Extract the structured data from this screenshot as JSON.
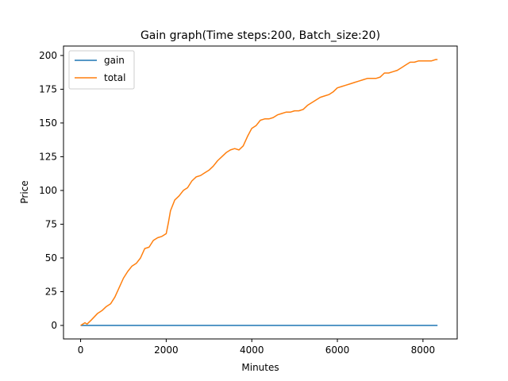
{
  "chart_data": {
    "type": "line",
    "title": "Gain graph(Time steps:200, Batch_size:20)",
    "xlabel": "Minutes",
    "ylabel": "Price",
    "xlim": [
      -400,
      8800
    ],
    "ylim": [
      -10,
      207
    ],
    "xticks": [
      0,
      2000,
      4000,
      6000,
      8000
    ],
    "yticks": [
      0,
      25,
      50,
      75,
      100,
      125,
      150,
      175,
      200
    ],
    "grid": false,
    "legend_position": "top-left",
    "series": [
      {
        "name": "gain",
        "color": "#1f77b4",
        "x": [
          0,
          1000,
          2000,
          3000,
          4000,
          5000,
          6000,
          7000,
          8000,
          8340
        ],
        "values": [
          0,
          0,
          0,
          0,
          0,
          0,
          0,
          0,
          0,
          0
        ]
      },
      {
        "name": "total",
        "color": "#ff7f0e",
        "x": [
          0,
          100,
          150,
          250,
          400,
          500,
          600,
          700,
          800,
          900,
          1000,
          1100,
          1200,
          1300,
          1400,
          1500,
          1600,
          1700,
          1800,
          1900,
          2000,
          2050,
          2100,
          2200,
          2300,
          2400,
          2500,
          2600,
          2700,
          2800,
          2900,
          3000,
          3100,
          3200,
          3300,
          3400,
          3500,
          3600,
          3700,
          3800,
          3900,
          4000,
          4100,
          4200,
          4300,
          4400,
          4500,
          4600,
          4700,
          4800,
          4900,
          5000,
          5100,
          5200,
          5300,
          5400,
          5500,
          5600,
          5700,
          5800,
          5900,
          6000,
          6100,
          6200,
          6300,
          6400,
          6500,
          6600,
          6700,
          6800,
          6900,
          7000,
          7100,
          7200,
          7300,
          7400,
          7500,
          7600,
          7700,
          7800,
          7900,
          8000,
          8100,
          8200,
          8300,
          8340
        ],
        "values": [
          0,
          2,
          1,
          4,
          9,
          11,
          14,
          16,
          21,
          28,
          35,
          40,
          44,
          46,
          50,
          57,
          58,
          63,
          65,
          66,
          68,
          76,
          85,
          93,
          96,
          100,
          102,
          107,
          110,
          111,
          113,
          115,
          118,
          122,
          125,
          128,
          130,
          131,
          130,
          133,
          140,
          146,
          148,
          152,
          153,
          153,
          154,
          156,
          157,
          158,
          158,
          159,
          159,
          160,
          163,
          165,
          167,
          169,
          170,
          171,
          173,
          176,
          177,
          178,
          179,
          180,
          181,
          182,
          183,
          183,
          183,
          184,
          187,
          187,
          188,
          189,
          191,
          193,
          195,
          195,
          196,
          196,
          196,
          196,
          197,
          197
        ]
      }
    ]
  }
}
